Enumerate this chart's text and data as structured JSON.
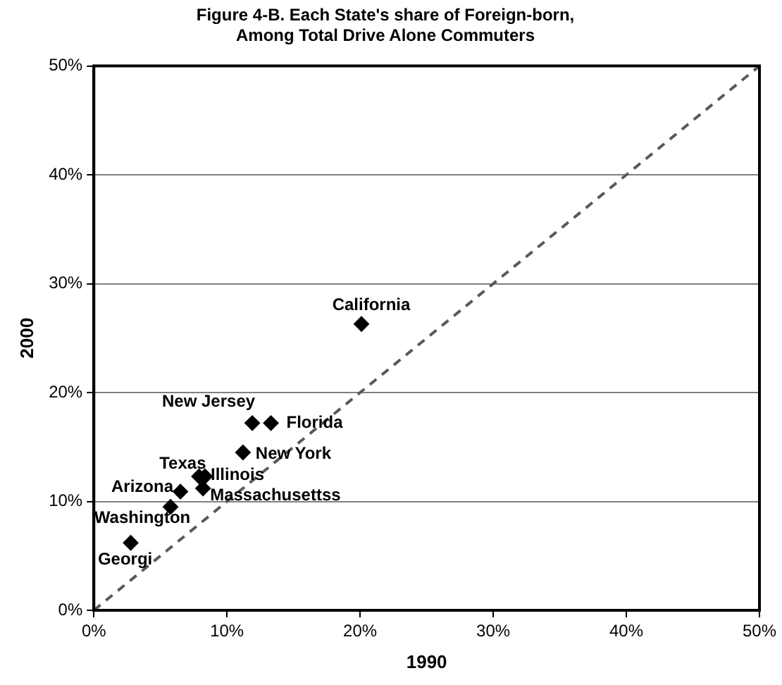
{
  "chart_data": {
    "type": "scatter",
    "title": "Figure 4-B. Each State's share of Foreign-born,\nAmong Total Drive Alone Commuters",
    "xlabel": "1990",
    "ylabel": "2000",
    "xlim": [
      0,
      50
    ],
    "ylim": [
      0,
      50
    ],
    "xticks": [
      {
        "value": 0,
        "label": "0%"
      },
      {
        "value": 10,
        "label": "10%"
      },
      {
        "value": 20,
        "label": "20%"
      },
      {
        "value": 30,
        "label": "30%"
      },
      {
        "value": 40,
        "label": "40%"
      },
      {
        "value": 50,
        "label": "50%"
      }
    ],
    "yticks": [
      {
        "value": 0,
        "label": "0%"
      },
      {
        "value": 10,
        "label": "10%"
      },
      {
        "value": 20,
        "label": "20%"
      },
      {
        "value": 30,
        "label": "30%"
      },
      {
        "value": 40,
        "label": "40%"
      },
      {
        "value": 50,
        "label": "50%"
      }
    ],
    "grid": "y",
    "legend": false,
    "marker": "diamond",
    "series": [
      {
        "color": "#000000",
        "x": [
          20.1,
          11.9,
          13.3,
          11.2,
          7.9,
          8.35,
          8.2,
          6.5,
          5.76,
          2.77
        ],
        "values": [
          26.3,
          17.2,
          17.2,
          14.5,
          12.3,
          12.3,
          11.2,
          10.9,
          9.5,
          6.2
        ]
      },
      {
        "type": "line",
        "color": "#595959",
        "line_style": "dashed",
        "marker": "none",
        "x": [
          0,
          50
        ],
        "values": [
          0,
          50
        ]
      }
    ],
    "annotations": [
      {
        "text": "California",
        "x": 20.1,
        "y": 26.3
      },
      {
        "text": "New Jersey",
        "x": 11.9,
        "y": 17.2
      },
      {
        "text": "Florida",
        "x": 13.3,
        "y": 17.2
      },
      {
        "text": "New York",
        "x": 11.2,
        "y": 14.5
      },
      {
        "text": "Texas",
        "x": 7.9,
        "y": 12.3
      },
      {
        "text": "Illinois",
        "x": 8.35,
        "y": 12.3
      },
      {
        "text": "Massachusettss",
        "x": 8.2,
        "y": 11.2
      },
      {
        "text": "Arizona",
        "x": 6.5,
        "y": 10.9
      },
      {
        "text": "Washington",
        "x": 5.76,
        "y": 9.5
      },
      {
        "text": "Georgi",
        "x": 2.77,
        "y": 6.2
      }
    ]
  }
}
